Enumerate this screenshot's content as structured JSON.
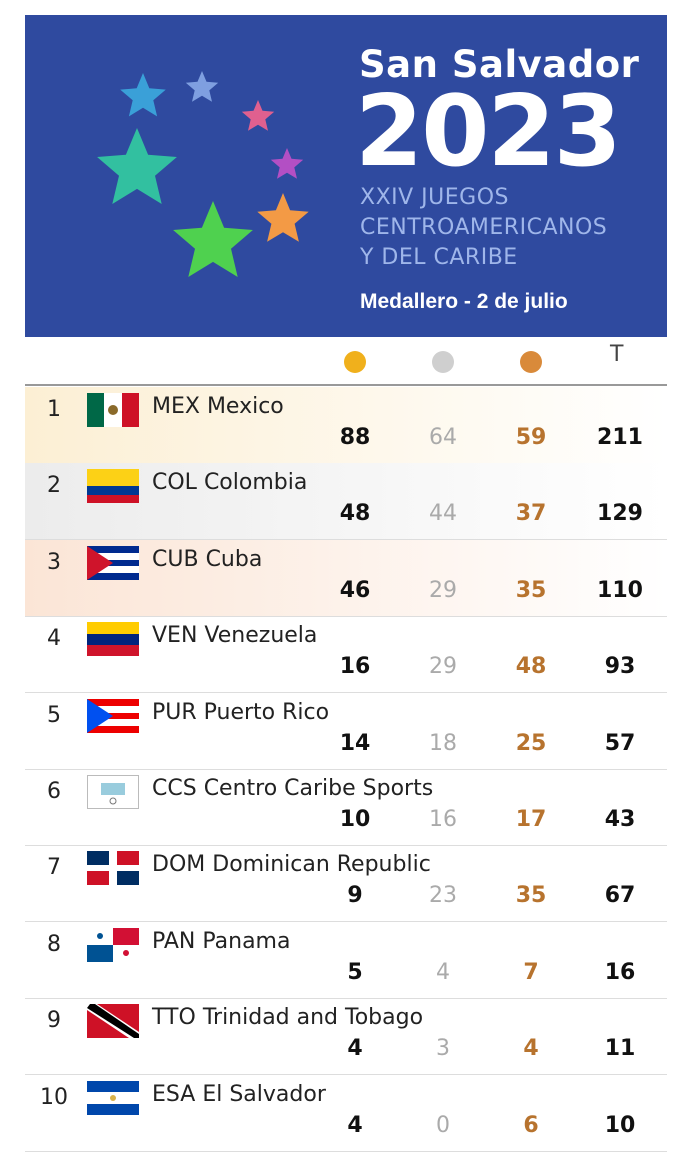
{
  "header": {
    "city": "San Salvador",
    "year": "2023",
    "event_lines": [
      "XXIV JUEGOS",
      "CENTROAMERICANOS",
      "Y DEL CARIBE"
    ],
    "subtitle": "Medallero - 2 de julio"
  },
  "table": {
    "total_header": "T",
    "rows": [
      {
        "rank": "1",
        "code": "MEX",
        "name": "Mexico",
        "gold": "88",
        "silver": "64",
        "bronze": "59",
        "total": "211"
      },
      {
        "rank": "2",
        "code": "COL",
        "name": "Colombia",
        "gold": "48",
        "silver": "44",
        "bronze": "37",
        "total": "129"
      },
      {
        "rank": "3",
        "code": "CUB",
        "name": "Cuba",
        "gold": "46",
        "silver": "29",
        "bronze": "35",
        "total": "110"
      },
      {
        "rank": "4",
        "code": "VEN",
        "name": "Venezuela",
        "gold": "16",
        "silver": "29",
        "bronze": "48",
        "total": "93"
      },
      {
        "rank": "5",
        "code": "PUR",
        "name": "Puerto Rico",
        "gold": "14",
        "silver": "18",
        "bronze": "25",
        "total": "57"
      },
      {
        "rank": "6",
        "code": "CCS",
        "name": "Centro Caribe Sports",
        "gold": "10",
        "silver": "16",
        "bronze": "17",
        "total": "43"
      },
      {
        "rank": "7",
        "code": "DOM",
        "name": "Dominican Republic",
        "gold": "9",
        "silver": "23",
        "bronze": "35",
        "total": "67"
      },
      {
        "rank": "8",
        "code": "PAN",
        "name": "Panama",
        "gold": "5",
        "silver": "4",
        "bronze": "7",
        "total": "16"
      },
      {
        "rank": "9",
        "code": "TTO",
        "name": "Trinidad and Tobago",
        "gold": "4",
        "silver": "3",
        "bronze": "4",
        "total": "11"
      },
      {
        "rank": "10",
        "code": "ESA",
        "name": "El Salvador",
        "gold": "4",
        "silver": "0",
        "bronze": "6",
        "total": "10"
      }
    ]
  }
}
